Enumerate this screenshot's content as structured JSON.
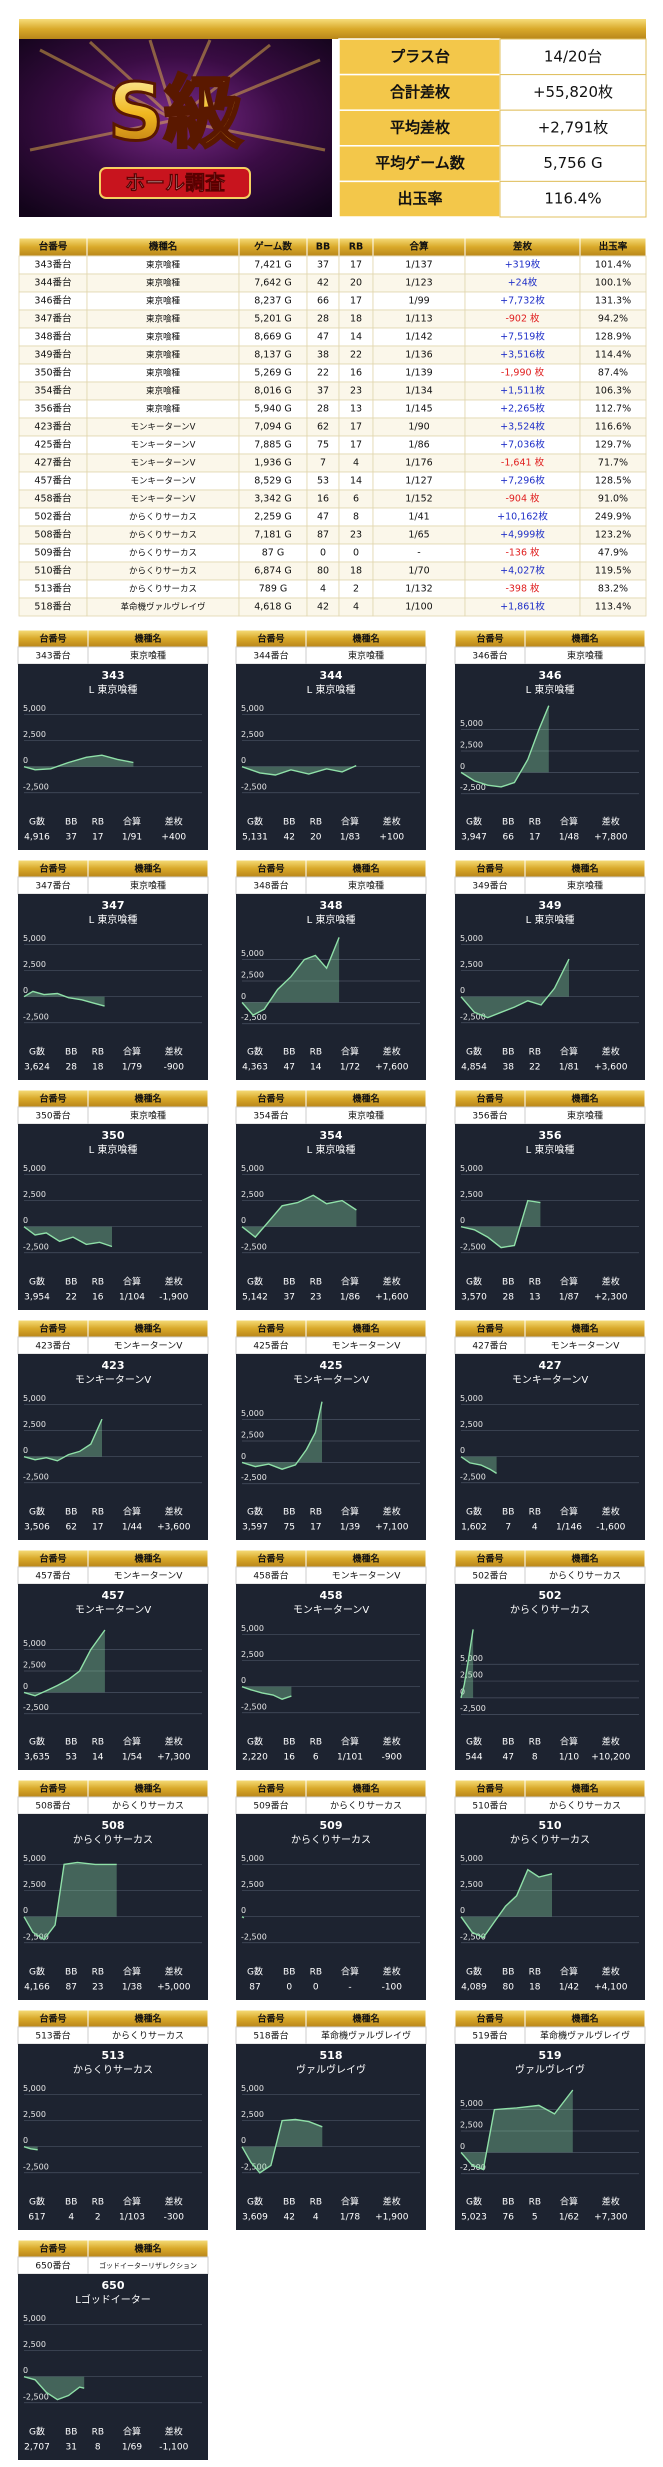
{
  "banner": {
    "title": "S級",
    "subtitle": "ホール調査"
  },
  "summary": {
    "rows": [
      [
        "プラス台",
        "14/20台"
      ],
      [
        "合計差枚",
        "+55,820枚"
      ],
      [
        "平均差枚",
        "+2,791枚"
      ],
      [
        "平均ゲーム数",
        "5,756 G"
      ],
      [
        "出玉率",
        "116.4%"
      ]
    ]
  },
  "table": {
    "header": [
      "台番号",
      "機種名",
      "ゲーム数",
      "BB",
      "RB",
      "合算",
      "差枚",
      "出玉率"
    ],
    "rows": [
      [
        "343番台",
        "東京喰種",
        "7,421 G",
        "37",
        "17",
        "1/137",
        "+319枚",
        "101.4%"
      ],
      [
        "344番台",
        "東京喰種",
        "7,642 G",
        "42",
        "20",
        "1/123",
        "+24枚",
        "100.1%"
      ],
      [
        "346番台",
        "東京喰種",
        "8,237 G",
        "66",
        "17",
        "1/99",
        "+7,732枚",
        "131.3%"
      ],
      [
        "347番台",
        "東京喰種",
        "5,201 G",
        "28",
        "18",
        "1/113",
        "-902 枚",
        "94.2%"
      ],
      [
        "348番台",
        "東京喰種",
        "8,669 G",
        "47",
        "14",
        "1/142",
        "+7,519枚",
        "128.9%"
      ],
      [
        "349番台",
        "東京喰種",
        "8,137 G",
        "38",
        "22",
        "1/136",
        "+3,516枚",
        "114.4%"
      ],
      [
        "350番台",
        "東京喰種",
        "5,269 G",
        "22",
        "16",
        "1/139",
        "-1,990 枚",
        "87.4%"
      ],
      [
        "354番台",
        "東京喰種",
        "8,016 G",
        "37",
        "23",
        "1/134",
        "+1,511枚",
        "106.3%"
      ],
      [
        "356番台",
        "東京喰種",
        "5,940 G",
        "28",
        "13",
        "1/145",
        "+2,265枚",
        "112.7%"
      ],
      [
        "423番台",
        "モンキーターンV",
        "7,094 G",
        "62",
        "17",
        "1/90",
        "+3,524枚",
        "116.6%"
      ],
      [
        "425番台",
        "モンキーターンV",
        "7,885 G",
        "75",
        "17",
        "1/86",
        "+7,036枚",
        "129.7%"
      ],
      [
        "427番台",
        "モンキーターンV",
        "1,936 G",
        "7",
        "4",
        "1/176",
        "-1,641 枚",
        "71.7%"
      ],
      [
        "457番台",
        "モンキーターンV",
        "8,529 G",
        "53",
        "14",
        "1/127",
        "+7,296枚",
        "128.5%"
      ],
      [
        "458番台",
        "モンキーターンV",
        "3,342 G",
        "16",
        "6",
        "1/152",
        "-904 枚",
        "91.0%"
      ],
      [
        "502番台",
        "からくりサーカス",
        "2,259 G",
        "47",
        "8",
        "1/41",
        "+10,162枚",
        "249.9%"
      ],
      [
        "508番台",
        "からくりサーカス",
        "7,181 G",
        "87",
        "23",
        "1/65",
        "+4,999枚",
        "123.2%"
      ],
      [
        "509番台",
        "からくりサーカス",
        "87 G",
        "0",
        "0",
        "-",
        "-136 枚",
        "47.9%"
      ],
      [
        "510番台",
        "からくりサーカス",
        "6,874 G",
        "80",
        "18",
        "1/70",
        "+4,027枚",
        "119.5%"
      ],
      [
        "513番台",
        "からくりサーカス",
        "789 G",
        "4",
        "2",
        "1/132",
        "-398 枚",
        "83.2%"
      ],
      [
        "518番台",
        "革命機ヴァルヴレイヴ",
        "4,618 G",
        "42",
        "4",
        "1/100",
        "+1,861枚",
        "113.4%"
      ]
    ]
  },
  "cards": {
    "header": [
      "台番号",
      "機種名"
    ],
    "stat_labels": [
      "G数",
      "BB",
      "RB",
      "合算",
      "差枚"
    ],
    "type": "line",
    "color": "#8fe0a8",
    "xlim": [
      0,
      8000
    ],
    "yticks": [
      {
        "value": 5000,
        "label": "5,000"
      },
      {
        "value": 2500,
        "label": "2,500"
      },
      0,
      {
        "value": -2500,
        "label": "-2,500"
      }
    ],
    "items": [
      {
        "machine_no": "343番台",
        "machine": "東京喰種",
        "title": "343",
        "subtitle": "L 東京喰種",
        "stats": [
          "4,916",
          "37",
          "17",
          "1/91",
          "+400"
        ],
        "ylim": [
          -3000,
          6000
        ],
        "x": [
          0,
          500,
          1200,
          2000,
          2800,
          3500,
          4200,
          4916
        ],
        "values": [
          0,
          -300,
          -200,
          400,
          900,
          1100,
          700,
          400
        ]
      },
      {
        "machine_no": "344番台",
        "machine": "東京喰種",
        "title": "344",
        "subtitle": "L 東京喰種",
        "stats": [
          "5,131",
          "42",
          "20",
          "1/83",
          "+100"
        ],
        "ylim": [
          -3000,
          6000
        ],
        "x": [
          0,
          800,
          1500,
          2200,
          3000,
          3800,
          4500,
          5131
        ],
        "values": [
          0,
          -600,
          -800,
          -300,
          -700,
          -200,
          -500,
          100
        ]
      },
      {
        "machine_no": "346番台",
        "machine": "東京喰種",
        "title": "346",
        "subtitle": "L 東京喰種",
        "stats": [
          "3,947",
          "66",
          "17",
          "1/48",
          "+7,800"
        ],
        "ylim": [
          -3000,
          8000
        ],
        "x": [
          0,
          600,
          1200,
          1800,
          2400,
          3000,
          3500,
          3947
        ],
        "values": [
          0,
          -1000,
          -1500,
          -1700,
          -1200,
          1500,
          5000,
          7800
        ]
      },
      {
        "machine_no": "347番台",
        "machine": "東京喰種",
        "title": "347",
        "subtitle": "L 東京喰種",
        "stats": [
          "3,624",
          "28",
          "18",
          "1/79",
          "-900"
        ],
        "ylim": [
          -3000,
          6000
        ],
        "x": [
          0,
          400,
          900,
          1500,
          2000,
          2600,
          3100,
          3624
        ],
        "values": [
          0,
          500,
          200,
          300,
          -100,
          -300,
          -600,
          -900
        ]
      },
      {
        "machine_no": "348番台",
        "machine": "東京喰種",
        "title": "348",
        "subtitle": "L 東京喰種",
        "stats": [
          "4,363",
          "47",
          "14",
          "1/72",
          "+7,600"
        ],
        "ylim": [
          -3000,
          8000
        ],
        "x": [
          0,
          500,
          1000,
          1600,
          2200,
          2800,
          3300,
          3800,
          4363
        ],
        "values": [
          0,
          -1500,
          -800,
          1500,
          3000,
          5000,
          5500,
          4000,
          7600
        ]
      },
      {
        "machine_no": "349番台",
        "machine": "東京喰種",
        "title": "349",
        "subtitle": "L 東京喰種",
        "stats": [
          "4,854",
          "38",
          "22",
          "1/81",
          "+3,600"
        ],
        "ylim": [
          -3000,
          6000
        ],
        "x": [
          0,
          600,
          1200,
          1800,
          2400,
          3000,
          3600,
          4200,
          4854
        ],
        "values": [
          0,
          -1500,
          -2000,
          -1500,
          -1000,
          -400,
          -800,
          800,
          3600
        ]
      },
      {
        "machine_no": "350番台",
        "machine": "東京喰種",
        "title": "350",
        "subtitle": "L 東京喰種",
        "stats": [
          "3,954",
          "22",
          "16",
          "1/104",
          "-1,900"
        ],
        "ylim": [
          -3000,
          6000
        ],
        "x": [
          0,
          500,
          1000,
          1600,
          2200,
          2800,
          3400,
          3954
        ],
        "values": [
          0,
          -800,
          -600,
          -1400,
          -1000,
          -1700,
          -1500,
          -1900
        ]
      },
      {
        "machine_no": "354番台",
        "machine": "東京喰種",
        "title": "354",
        "subtitle": "L 東京喰種",
        "stats": [
          "5,142",
          "37",
          "23",
          "1/86",
          "+1,600"
        ],
        "ylim": [
          -3000,
          6000
        ],
        "x": [
          0,
          600,
          1200,
          1800,
          2500,
          3200,
          3800,
          4500,
          5142
        ],
        "values": [
          0,
          -1000,
          500,
          2000,
          2300,
          3000,
          2200,
          2500,
          1600
        ]
      },
      {
        "machine_no": "356番台",
        "machine": "東京喰種",
        "title": "356",
        "subtitle": "L 東京喰種",
        "stats": [
          "3,570",
          "28",
          "13",
          "1/87",
          "+2,300"
        ],
        "ylim": [
          -3000,
          6000
        ],
        "x": [
          0,
          600,
          1200,
          1800,
          2400,
          3000,
          3570
        ],
        "values": [
          0,
          -300,
          -1000,
          -2000,
          -1800,
          2500,
          2300
        ]
      },
      {
        "machine_no": "423番台",
        "machine": "モンキーターンV",
        "title": "423",
        "subtitle": "モンキーターンV",
        "stats": [
          "3,506",
          "62",
          "17",
          "1/44",
          "+3,600"
        ],
        "ylim": [
          -3000,
          6000
        ],
        "x": [
          0,
          500,
          1000,
          1500,
          2000,
          2500,
          3000,
          3506
        ],
        "values": [
          0,
          -300,
          -100,
          -400,
          200,
          500,
          1200,
          3600
        ]
      },
      {
        "machine_no": "425番台",
        "machine": "モンキーターンV",
        "title": "425",
        "subtitle": "モンキーターンV",
        "stats": [
          "3,597",
          "75",
          "17",
          "1/39",
          "+7,100"
        ],
        "ylim": [
          -3000,
          8000
        ],
        "x": [
          0,
          600,
          1200,
          1800,
          2400,
          2900,
          3300,
          3597
        ],
        "values": [
          0,
          -500,
          -200,
          -800,
          -300,
          1500,
          3500,
          7100
        ]
      },
      {
        "machine_no": "427番台",
        "machine": "モンキーターンV",
        "title": "427",
        "subtitle": "モンキーターンV",
        "stats": [
          "1,602",
          "7",
          "4",
          "1/146",
          "-1,600"
        ],
        "ylim": [
          -3000,
          6000
        ],
        "x": [
          0,
          400,
          900,
          1300,
          1602
        ],
        "values": [
          0,
          -600,
          -800,
          -1200,
          -1600
        ]
      },
      {
        "machine_no": "457番台",
        "machine": "モンキーターンV",
        "title": "457",
        "subtitle": "モンキーターンV",
        "stats": [
          "3,635",
          "53",
          "14",
          "1/54",
          "+7,300"
        ],
        "ylim": [
          -3000,
          8000
        ],
        "x": [
          0,
          500,
          1000,
          1500,
          2000,
          2500,
          3000,
          3635
        ],
        "values": [
          0,
          -400,
          200,
          800,
          1500,
          2500,
          5000,
          7300
        ]
      },
      {
        "machine_no": "458番台",
        "machine": "モンキーターンV",
        "title": "458",
        "subtitle": "モンキーターンV",
        "stats": [
          "2,220",
          "16",
          "6",
          "1/101",
          "-900"
        ],
        "ylim": [
          -3000,
          6000
        ],
        "x": [
          0,
          400,
          900,
          1400,
          1800,
          2220
        ],
        "values": [
          0,
          -300,
          -600,
          -800,
          -1200,
          -900
        ]
      },
      {
        "machine_no": "502番台",
        "machine": "からくりサーカス",
        "title": "502",
        "subtitle": "からくりサーカス",
        "stats": [
          "544",
          "47",
          "8",
          "1/10",
          "+10,200"
        ],
        "ylim": [
          -3000,
          11000
        ],
        "x": [
          0,
          150,
          300,
          544
        ],
        "values": [
          0,
          2000,
          5000,
          10200
        ]
      },
      {
        "machine_no": "508番台",
        "machine": "からくりサーカス",
        "title": "508",
        "subtitle": "からくりサーカス",
        "stats": [
          "4,166",
          "87",
          "23",
          "1/38",
          "+5,000"
        ],
        "ylim": [
          -3000,
          6000
        ],
        "x": [
          0,
          400,
          900,
          1400,
          1800,
          2400,
          3200,
          4166
        ],
        "values": [
          0,
          -1500,
          -2200,
          -800,
          5000,
          5200,
          5000,
          5000
        ]
      },
      {
        "machine_no": "509番台",
        "machine": "からくりサーカス",
        "title": "509",
        "subtitle": "からくりサーカス",
        "stats": [
          "87",
          "0",
          "0",
          "-",
          "-100"
        ],
        "ylim": [
          -3000,
          6000
        ],
        "x": [
          0,
          87
        ],
        "values": [
          0,
          -100
        ]
      },
      {
        "machine_no": "510番台",
        "machine": "からくりサーカス",
        "title": "510",
        "subtitle": "からくりサーカス",
        "stats": [
          "4,089",
          "80",
          "18",
          "1/42",
          "+4,100"
        ],
        "ylim": [
          -3000,
          6000
        ],
        "x": [
          0,
          500,
          1000,
          1500,
          2000,
          2500,
          3000,
          3500,
          4089
        ],
        "values": [
          0,
          -1500,
          -2000,
          -500,
          1000,
          2000,
          4500,
          3800,
          4100
        ]
      },
      {
        "machine_no": "513番台",
        "machine": "からくりサーカス",
        "title": "513",
        "subtitle": "からくりサーカス",
        "stats": [
          "617",
          "4",
          "2",
          "1/103",
          "-300"
        ],
        "ylim": [
          -3000,
          6000
        ],
        "x": [
          0,
          300,
          617
        ],
        "values": [
          0,
          -200,
          -300
        ]
      },
      {
        "machine_no": "518番台",
        "machine": "革命機ヴァルヴレイヴ",
        "title": "518",
        "subtitle": "ヴァルヴレイヴ",
        "stats": [
          "3,609",
          "42",
          "4",
          "1/78",
          "+1,900"
        ],
        "ylim": [
          -3000,
          6000
        ],
        "x": [
          0,
          400,
          800,
          1300,
          1800,
          2400,
          3000,
          3609
        ],
        "values": [
          0,
          -1500,
          -2500,
          -1800,
          2500,
          2600,
          2400,
          1900
        ]
      },
      {
        "machine_no": "519番台",
        "machine": "革命機ヴァルヴレイヴ",
        "title": "519",
        "subtitle": "ヴァルヴレイヴ",
        "stats": [
          "5,023",
          "76",
          "5",
          "1/62",
          "+7,300"
        ],
        "ylim": [
          -3000,
          8000
        ],
        "x": [
          0,
          500,
          1000,
          1500,
          2500,
          3500,
          4200,
          5023
        ],
        "values": [
          0,
          -1500,
          -2000,
          5000,
          5200,
          5500,
          4500,
          7300
        ]
      },
      {
        "machine_no": "650番台",
        "machine": "ゴッドイーターリザレクション",
        "title": "650",
        "subtitle": "Lゴッドイーター",
        "stats": [
          "2,707",
          "31",
          "8",
          "1/69",
          "-1,100"
        ],
        "ylim": [
          -3000,
          6000
        ],
        "x": [
          0,
          500,
          1000,
          1500,
          2000,
          2500,
          2707
        ],
        "values": [
          0,
          -300,
          -1500,
          -2200,
          -1800,
          -1000,
          -1100
        ]
      }
    ]
  }
}
